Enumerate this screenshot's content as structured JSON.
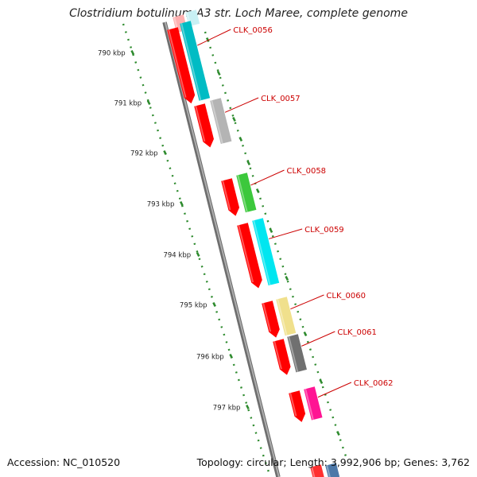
{
  "title": "Clostridium botulinum A3 str. Loch Maree, complete genome",
  "footer": {
    "accession": "Accession: NC_010520",
    "summary": "Topology: circular; Length: 3,992,906 bp; Genes: 3,762"
  },
  "colors": {
    "backbone": "#8a8a8a",
    "gene": "#ff0000",
    "label": "#cc0000",
    "tick": "#2e8b2e"
  },
  "tick_labels": [
    "790 kbp",
    "791 kbp",
    "792 kbp",
    "793 kbp",
    "794 kbp",
    "795 kbp",
    "796 kbp",
    "797 kbp"
  ],
  "genes": [
    {
      "label": "CLK_0056",
      "feature_color": "#00bcc4"
    },
    {
      "label": "CLK_0057",
      "feature_color": "#b4b4b4"
    },
    {
      "label": "CLK_0058",
      "feature_color": "#3cc83c"
    },
    {
      "label": "CLK_0059",
      "feature_color": "#00e6f0"
    },
    {
      "label": "CLK_0060",
      "feature_color": "#f0e08c"
    },
    {
      "label": "CLK_0061",
      "feature_color": "#707070"
    },
    {
      "label": "CLK_0062",
      "feature_color": "#ff1493"
    }
  ]
}
